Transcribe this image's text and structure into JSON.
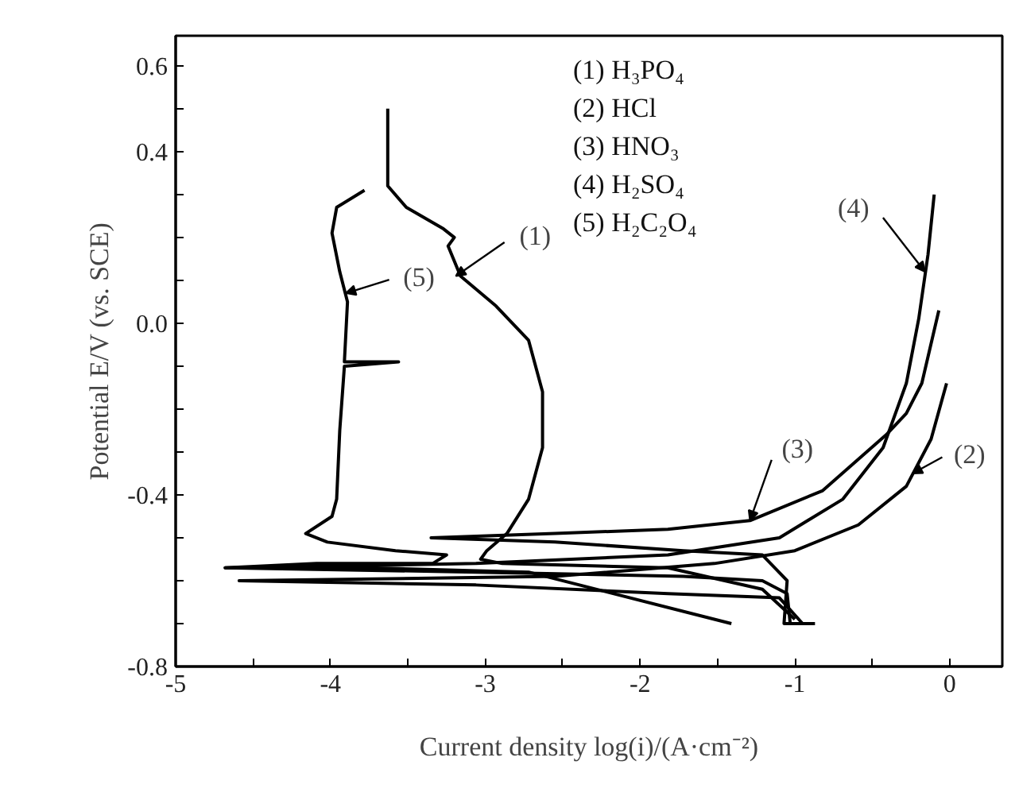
{
  "chart_data": {
    "type": "line",
    "xlabel": "Current density log(i)/(A·cm⁻²)",
    "ylabel": "Potential E/V (vs. SCE)",
    "xlim": [
      -5,
      0.34
    ],
    "ylim": [
      -0.8,
      0.67
    ],
    "xticks": [
      -5,
      {
        "value": -4.5,
        "label": null
      },
      -4,
      {
        "value": -3.5,
        "label": null
      },
      -3,
      {
        "value": -2.5,
        "label": null
      },
      -2,
      {
        "value": -1.5,
        "label": null
      },
      -1,
      {
        "value": -0.5,
        "label": null
      },
      0
    ],
    "yticks": [
      {
        "value": -0.8,
        "label": "-0.8"
      },
      {
        "value": -0.7,
        "label": null
      },
      {
        "value": -0.6,
        "label": null
      },
      {
        "value": -0.5,
        "label": null
      },
      {
        "value": -0.4,
        "label": "-0.4"
      },
      {
        "value": -0.3,
        "label": null
      },
      {
        "value": -0.2,
        "label": null
      },
      {
        "value": -0.1,
        "label": null
      },
      {
        "value": 0,
        "label": "0.0"
      },
      {
        "value": 0.1,
        "label": null
      },
      {
        "value": 0.2,
        "label": null
      },
      {
        "value": 0.3,
        "label": null
      },
      {
        "value": 0.4,
        "label": "0.4"
      },
      {
        "value": 0.5,
        "label": null
      },
      {
        "value": 0.6,
        "label": "0.6"
      }
    ],
    "grid": false,
    "marker": "none",
    "line_style": "solid",
    "series": [
      {
        "color": "#000000",
        "x": [
          -3.63,
          -3.63,
          -3.51,
          -3.27,
          -3.2,
          -3.24,
          -3.16,
          -2.93,
          -2.72,
          -2.63,
          -2.63,
          -2.72,
          -2.86,
          -2.99,
          -3.03,
          -2.89,
          -1.82,
          -1.21,
          -1.0
        ],
        "values": [
          0.5,
          0.32,
          0.27,
          0.22,
          0.2,
          0.18,
          0.11,
          0.04,
          -0.04,
          -0.16,
          -0.29,
          -0.41,
          -0.49,
          -0.53,
          -0.55,
          -0.56,
          -0.57,
          -0.62,
          -0.69
        ]
      },
      {
        "color": "#000000",
        "x": [
          -0.02,
          -0.12,
          -0.28,
          -0.59,
          -1.0,
          -1.52,
          -2.55,
          -4.59,
          -3.06,
          -1.82,
          -1.1,
          -0.95
        ],
        "values": [
          -0.14,
          -0.27,
          -0.38,
          -0.47,
          -0.53,
          -0.56,
          -0.59,
          -0.6,
          -0.61,
          -0.63,
          -0.64,
          -0.7
        ]
      },
      {
        "color": "#000000",
        "x": [
          -0.07,
          -0.18,
          -0.28,
          -0.41,
          -0.82,
          -1.29,
          -1.82,
          -2.55,
          -3.35,
          -2.55,
          -1.72,
          -1.21,
          -1.05,
          -1.07,
          -0.87
        ],
        "values": [
          0.03,
          -0.14,
          -0.21,
          -0.26,
          -0.39,
          -0.46,
          -0.48,
          -0.49,
          -0.5,
          -0.51,
          -0.53,
          -0.54,
          -0.6,
          -0.7,
          -0.7
        ]
      },
      {
        "color": "#000000",
        "x": [
          -0.1,
          -0.14,
          -0.2,
          -0.28,
          -0.43,
          -0.69,
          -1.1,
          -1.82,
          -3.06,
          -4.68,
          -3.06,
          -1.72,
          -1.21,
          -1.05,
          -1.03
        ],
        "values": [
          0.3,
          0.16,
          0.01,
          -0.14,
          -0.29,
          -0.41,
          -0.5,
          -0.54,
          -0.56,
          -0.57,
          -0.58,
          -0.59,
          -0.6,
          -0.63,
          -0.7
        ]
      },
      {
        "color": "#000000",
        "x": [
          -3.78,
          -3.96,
          -3.99,
          -3.94,
          -3.89,
          -3.91,
          -3.56,
          -3.91,
          -3.94,
          -3.96,
          -3.99,
          -4.16,
          -4.02,
          -3.58,
          -3.25,
          -3.34,
          -4.09,
          -4.68,
          -3.75,
          -2.72,
          -1.41
        ],
        "values": [
          0.31,
          0.27,
          0.21,
          0.12,
          0.05,
          -0.09,
          -0.09,
          -0.1,
          -0.25,
          -0.41,
          -0.45,
          -0.49,
          -0.51,
          -0.53,
          -0.54,
          -0.56,
          -0.56,
          -0.57,
          -0.57,
          -0.58,
          -0.7
        ]
      }
    ],
    "annotations": [
      "(1) H₃PO₄",
      "(2) HCl",
      "(3) HNO₃",
      "(4) H₂SO₄",
      "(5) H₂C₂O₄",
      {
        "text": "(1)",
        "x": -3.19,
        "y": 0.11
      },
      {
        "text": "(5)",
        "x": -3.9,
        "y": 0.07
      },
      {
        "text": "(4)",
        "x": -0.16,
        "y": 0.12
      },
      {
        "text": "(3)",
        "x": -1.29,
        "y": -0.46
      },
      {
        "text": "(2)",
        "x": -0.24,
        "y": -0.35
      }
    ]
  }
}
